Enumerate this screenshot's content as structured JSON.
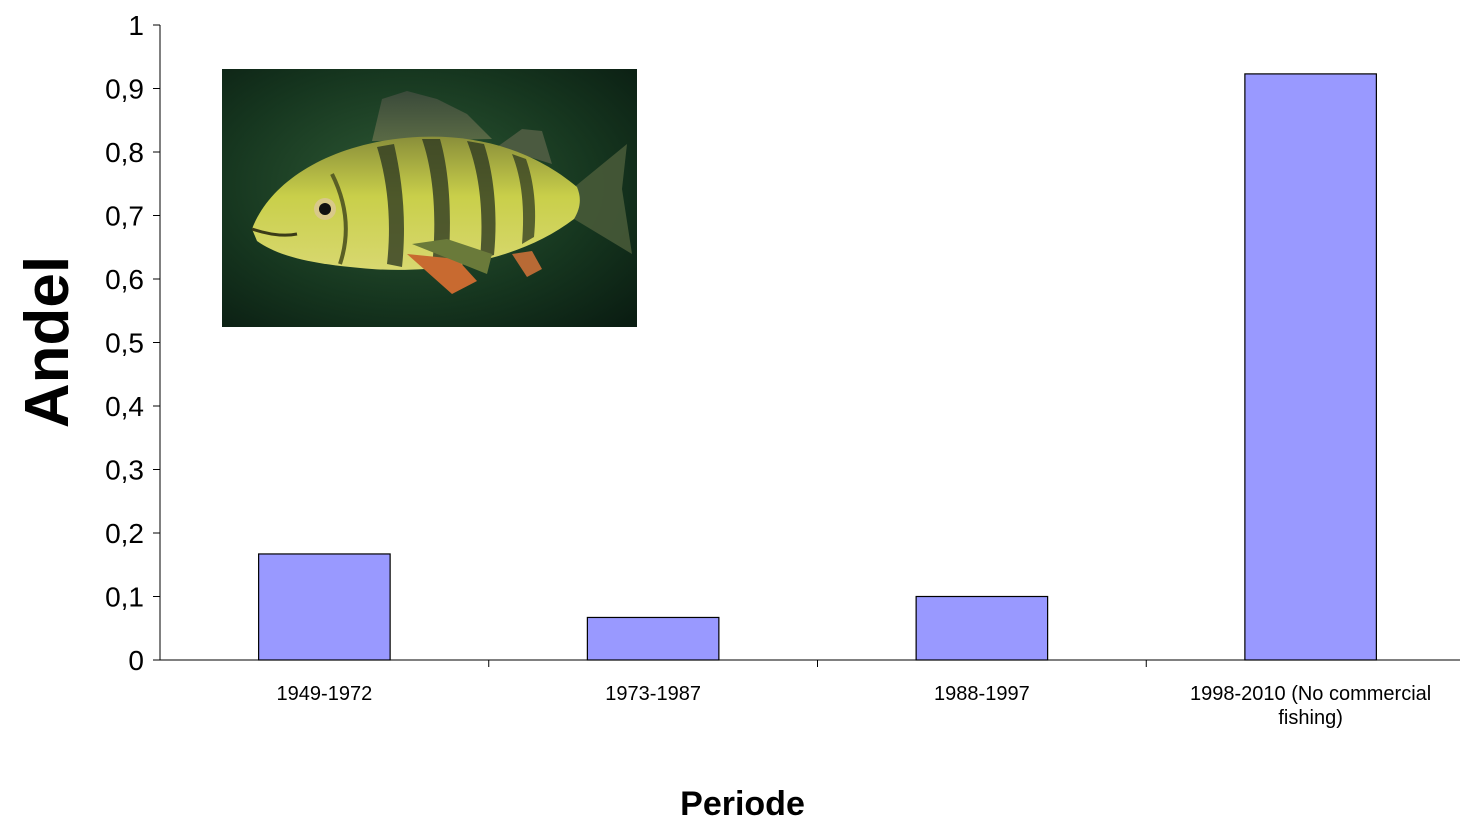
{
  "chart_data": {
    "type": "bar",
    "title": "",
    "xlabel": "Periode",
    "ylabel": "Andel",
    "categories": [
      "1949-1972",
      "1973-1987",
      "1988-1997",
      "1998-2010 (No commercial fishing)"
    ],
    "category_lines": [
      [
        "1949-1972"
      ],
      [
        "1973-1987"
      ],
      [
        "1988-1997"
      ],
      [
        "1998-2010 (No commercial",
        "fishing)"
      ]
    ],
    "values": [
      0.167,
      0.067,
      0.1,
      0.923
    ],
    "ylim": [
      0,
      1
    ],
    "yticks": [
      "0",
      "0,1",
      "0,2",
      "0,3",
      "0,4",
      "0,5",
      "0,6",
      "0,7",
      "0,8",
      "0,9",
      "1"
    ],
    "grid": false,
    "legend": "none",
    "colors": {
      "bar_fill": "#9999ff",
      "bar_stroke": "#000000",
      "axis": "#000000"
    }
  },
  "inset_image": {
    "icon": "perch-fish-photo"
  }
}
